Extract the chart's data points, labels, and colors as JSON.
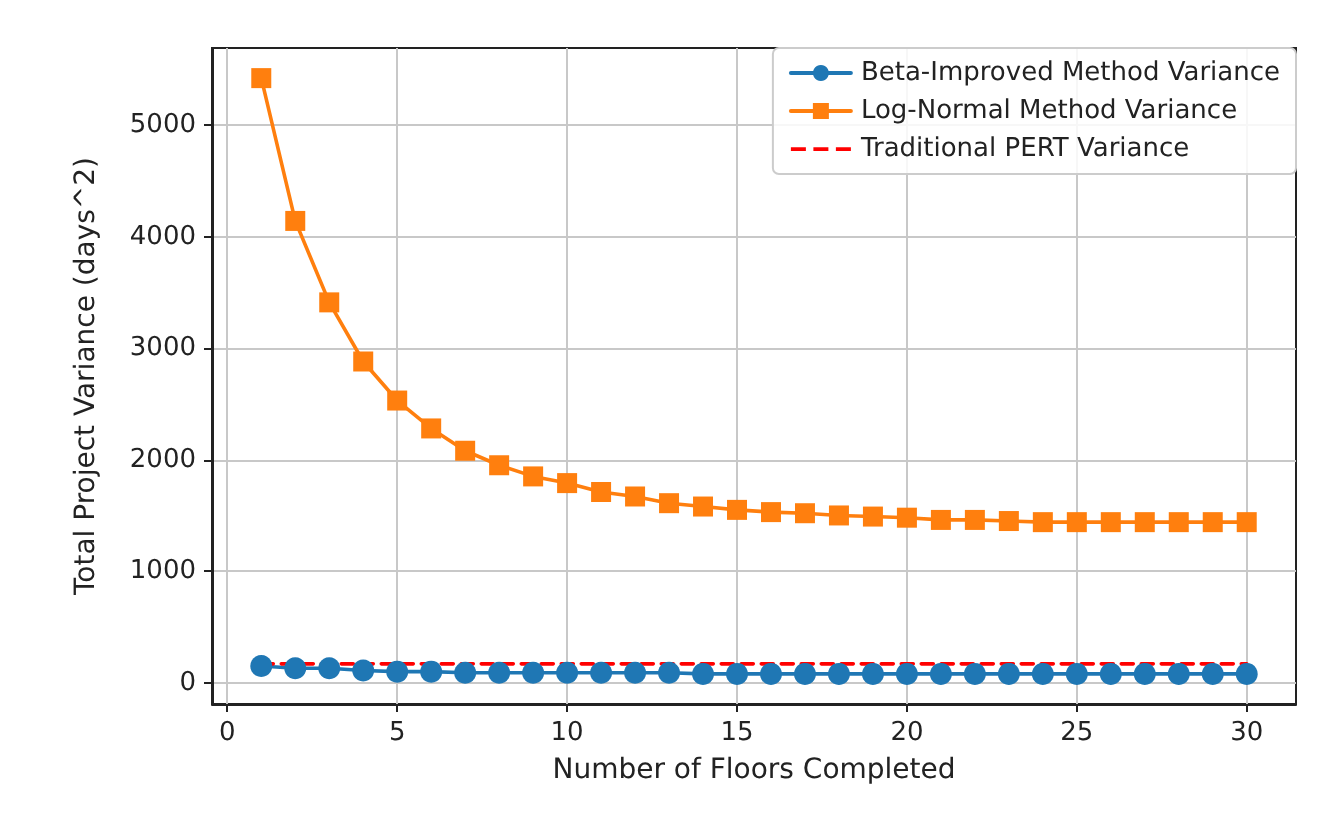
{
  "chart_data": {
    "type": "line",
    "xlabel": "Number of Floors Completed",
    "ylabel": "Total Project Variance (days^2)",
    "x": [
      1,
      2,
      3,
      4,
      5,
      6,
      7,
      8,
      9,
      10,
      11,
      12,
      13,
      14,
      15,
      16,
      17,
      18,
      19,
      20,
      21,
      22,
      23,
      24,
      25,
      26,
      27,
      28,
      29,
      30
    ],
    "series": [
      {
        "name": "Beta-Improved Method Variance",
        "color": "#1f77b4",
        "marker": "circle",
        "line_style": "solid",
        "values": [
          150,
          130,
          130,
          110,
          100,
          100,
          90,
          90,
          90,
          90,
          90,
          90,
          90,
          80,
          80,
          80,
          80,
          80,
          80,
          80,
          80,
          80,
          80,
          80,
          80,
          80,
          80,
          80,
          80,
          80
        ]
      },
      {
        "name": "Log-Normal Method Variance",
        "color": "#ff7f0e",
        "marker": "square",
        "line_style": "solid",
        "values": [
          5420,
          4140,
          3410,
          2880,
          2530,
          2280,
          2080,
          1950,
          1850,
          1790,
          1710,
          1670,
          1610,
          1580,
          1550,
          1530,
          1520,
          1500,
          1490,
          1480,
          1460,
          1460,
          1450,
          1440,
          1440,
          1440,
          1440,
          1440,
          1440,
          1440
        ]
      },
      {
        "name": "Traditional PERT Variance",
        "color": "#ff0000",
        "marker": "none",
        "line_style": "dashed",
        "values": [
          170,
          170,
          170,
          170,
          170,
          170,
          170,
          170,
          170,
          170,
          170,
          170,
          170,
          170,
          170,
          170,
          170,
          170,
          170,
          170,
          170,
          170,
          170,
          170,
          170,
          170,
          170,
          170,
          170,
          170
        ]
      }
    ],
    "xlim": [
      -0.45,
      31.45
    ],
    "xticks": [
      0,
      5,
      10,
      15,
      20,
      25,
      30
    ],
    "ylim": [
      -190,
      5690
    ],
    "yticks": [
      0,
      1000,
      2000,
      3000,
      4000,
      5000
    ],
    "grid": true,
    "legend": "top right"
  }
}
